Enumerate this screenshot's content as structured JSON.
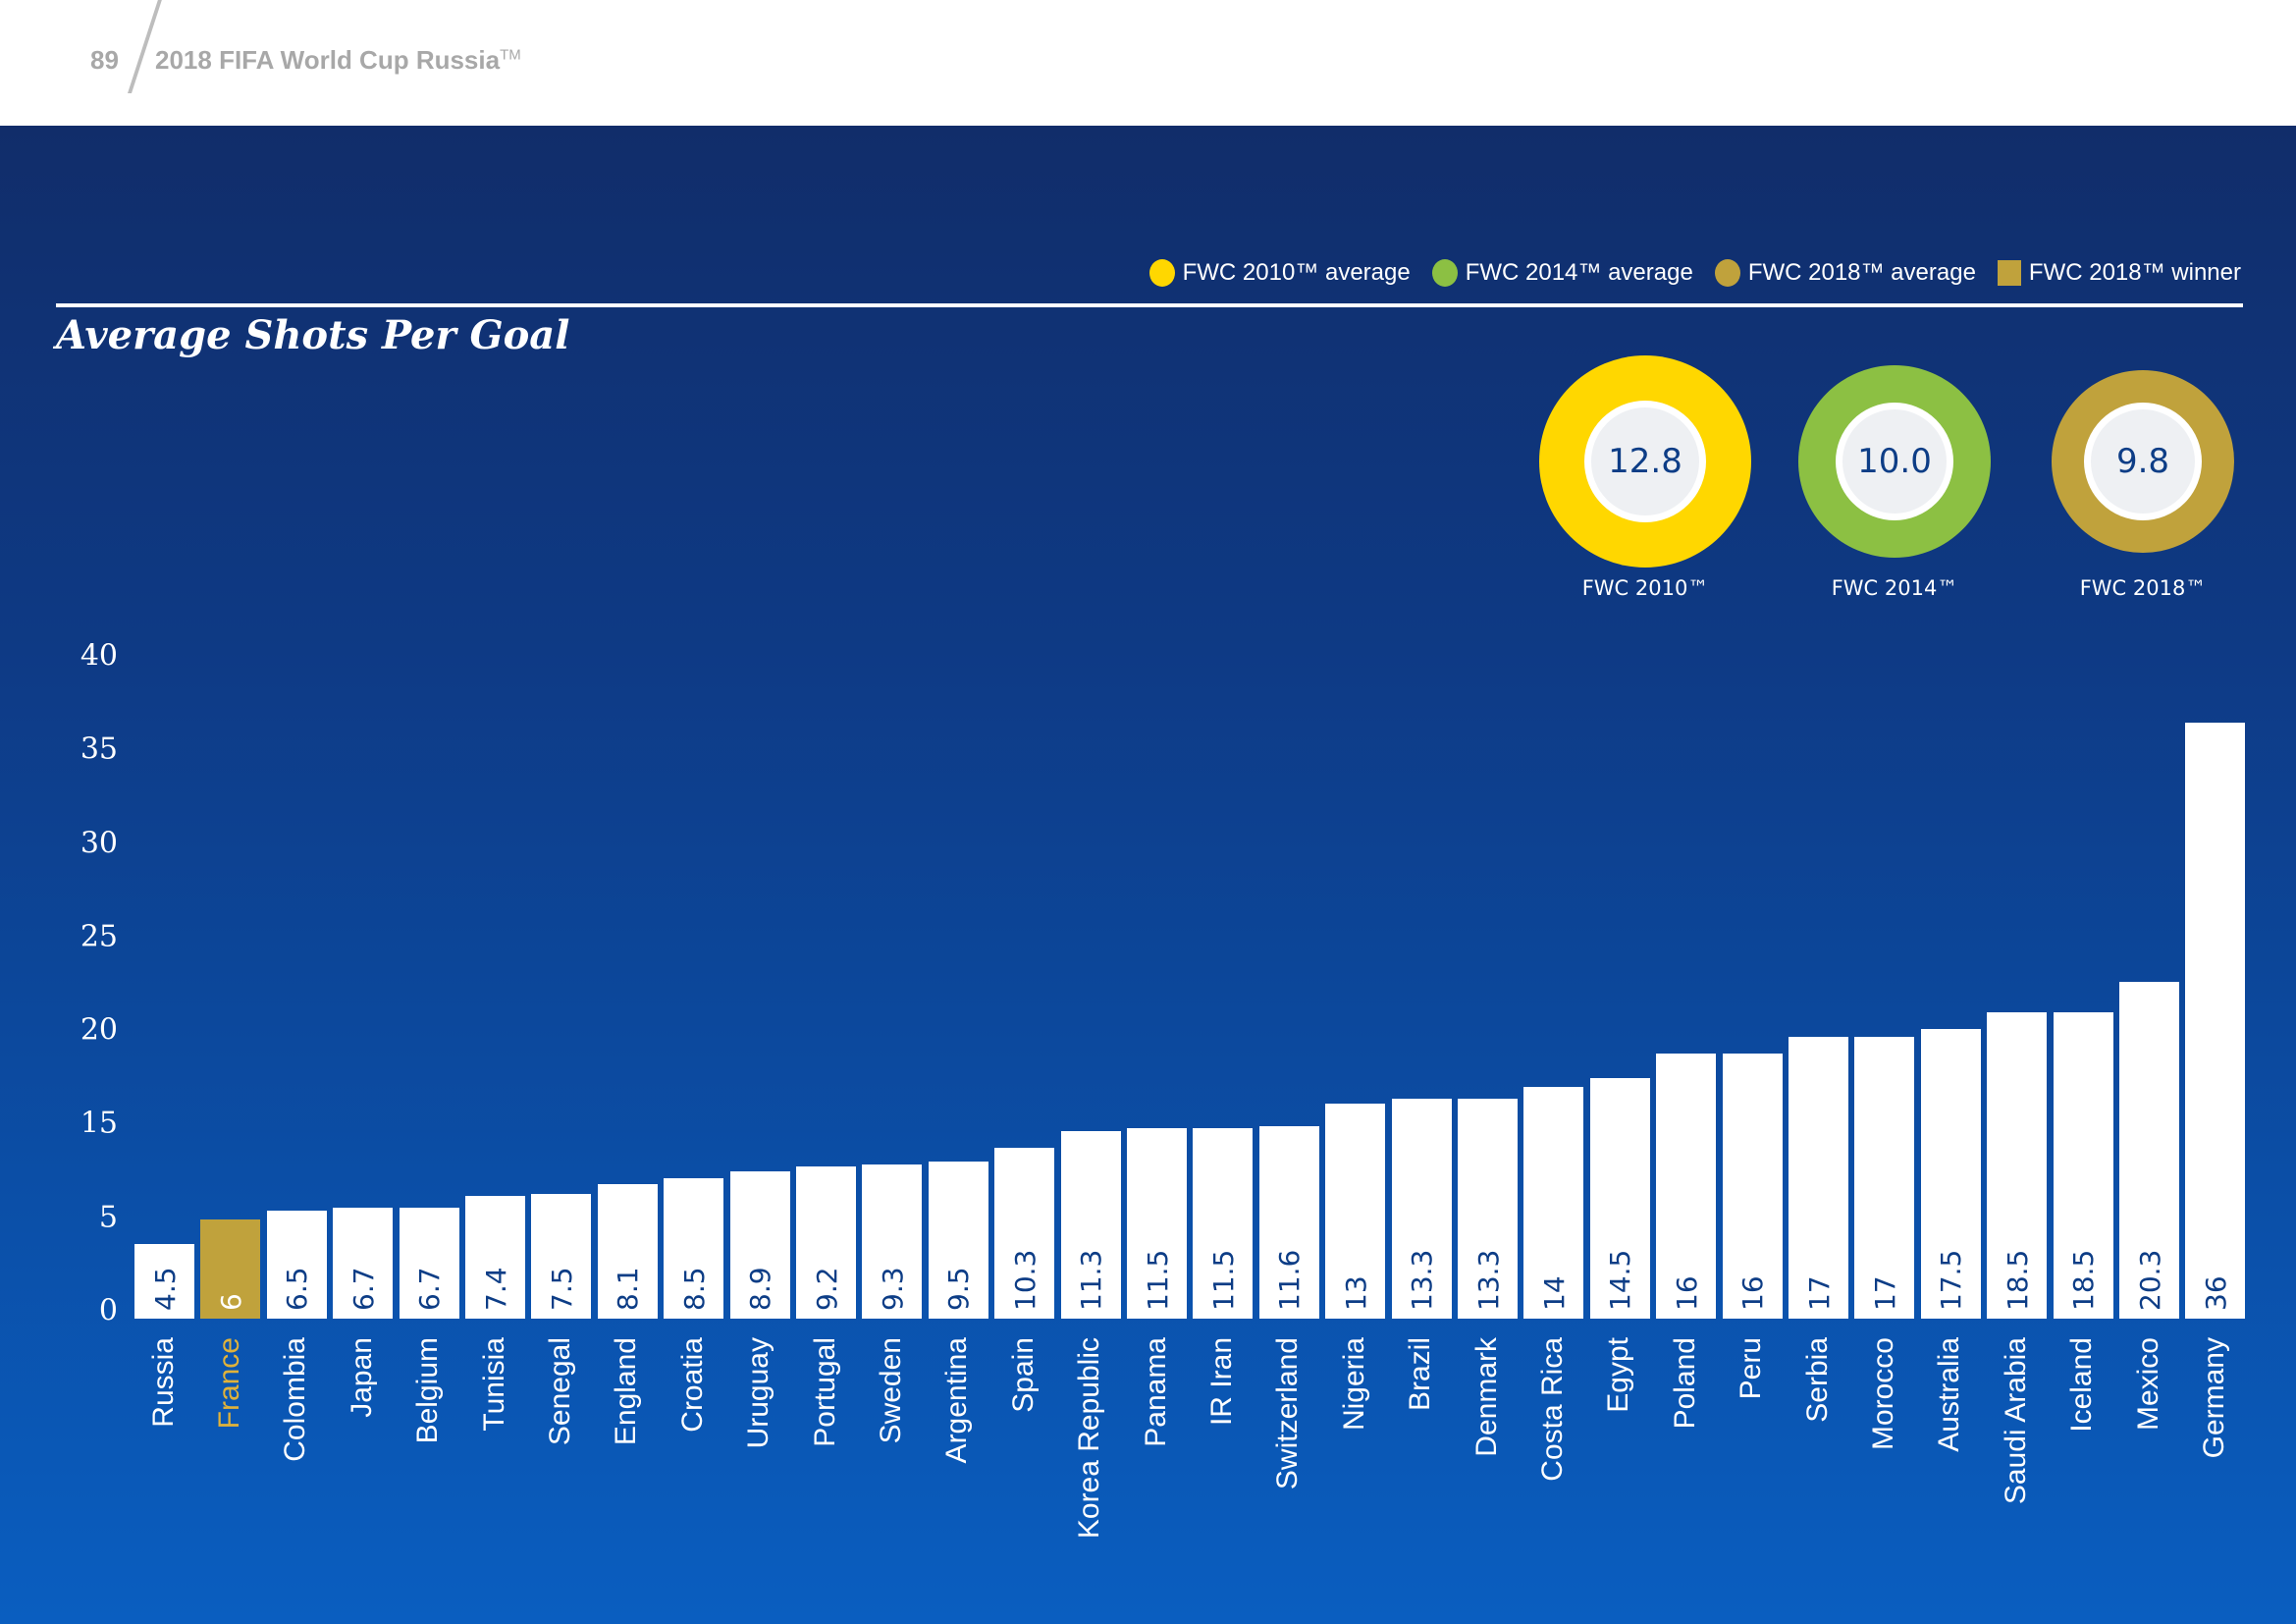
{
  "header": {
    "page_number": "89",
    "doc_title": "2018 FIFA World Cup Russia",
    "doc_title_tm": "TM"
  },
  "legend": [
    {
      "label": "FWC 2010™ average",
      "color": "#ffd700",
      "shape": "circle"
    },
    {
      "label": "FWC 2014™ average",
      "color": "#8cc043",
      "shape": "circle"
    },
    {
      "label": "FWC 2018™ average",
      "color": "#c0a23c",
      "shape": "circle"
    },
    {
      "label": "FWC 2018™ winner",
      "color": "#c0a23c",
      "shape": "square"
    }
  ],
  "averages": [
    {
      "value": "12.8",
      "label": "FWC 2010™",
      "color": "#ffd700"
    },
    {
      "value": "10.0",
      "label": "FWC 2014™",
      "color": "#8cc043"
    },
    {
      "value": "9.8",
      "label": "FWC 2018™",
      "color": "#c0a23c"
    }
  ],
  "chart_data": {
    "type": "bar",
    "title": "Average Shots Per Goal",
    "xlabel": "",
    "ylabel": "",
    "ylim": [
      0,
      40
    ],
    "yticks": [
      "40",
      "35",
      "30",
      "25",
      "20",
      "15",
      "5",
      "0"
    ],
    "categories": [
      "Russia",
      "France",
      "Colombia",
      "Japan",
      "Belgium",
      "Tunisia",
      "Senegal",
      "England",
      "Croatia",
      "Uruguay",
      "Portugal",
      "Sweden",
      "Argentina",
      "Spain",
      "Korea Republic",
      "Panama",
      "IR Iran",
      "Switzerland",
      "Nigeria",
      "Brazil",
      "Denmark",
      "Costa Rica",
      "Egypt",
      "Poland",
      "Peru",
      "Serbia",
      "Morocco",
      "Australia",
      "Saudi Arabia",
      "Iceland",
      "Mexico",
      "Germany"
    ],
    "values": [
      4.5,
      6,
      6.5,
      6.7,
      6.7,
      7.4,
      7.5,
      8.1,
      8.5,
      8.9,
      9.2,
      9.3,
      9.5,
      10.3,
      11.3,
      11.5,
      11.5,
      11.6,
      13,
      13.3,
      13.3,
      14,
      14.5,
      16,
      16,
      17,
      17,
      17.5,
      18.5,
      18.5,
      20.3,
      36
    ],
    "labels": [
      "4.5",
      "6",
      "6.5",
      "6.7",
      "6.7",
      "7.4",
      "7.5",
      "8.1",
      "8.5",
      "8.9",
      "9.2",
      "9.3",
      "9.5",
      "10.3",
      "11.3",
      "11.5",
      "11.5",
      "11.6",
      "13",
      "13.3",
      "13.3",
      "14",
      "14.5",
      "16",
      "16",
      "17",
      "17",
      "17.5",
      "18.5",
      "18.5",
      "20.3",
      "36"
    ],
    "highlight": "France",
    "bar_color": "#ffffff",
    "highlight_color": "#c0a23c"
  }
}
